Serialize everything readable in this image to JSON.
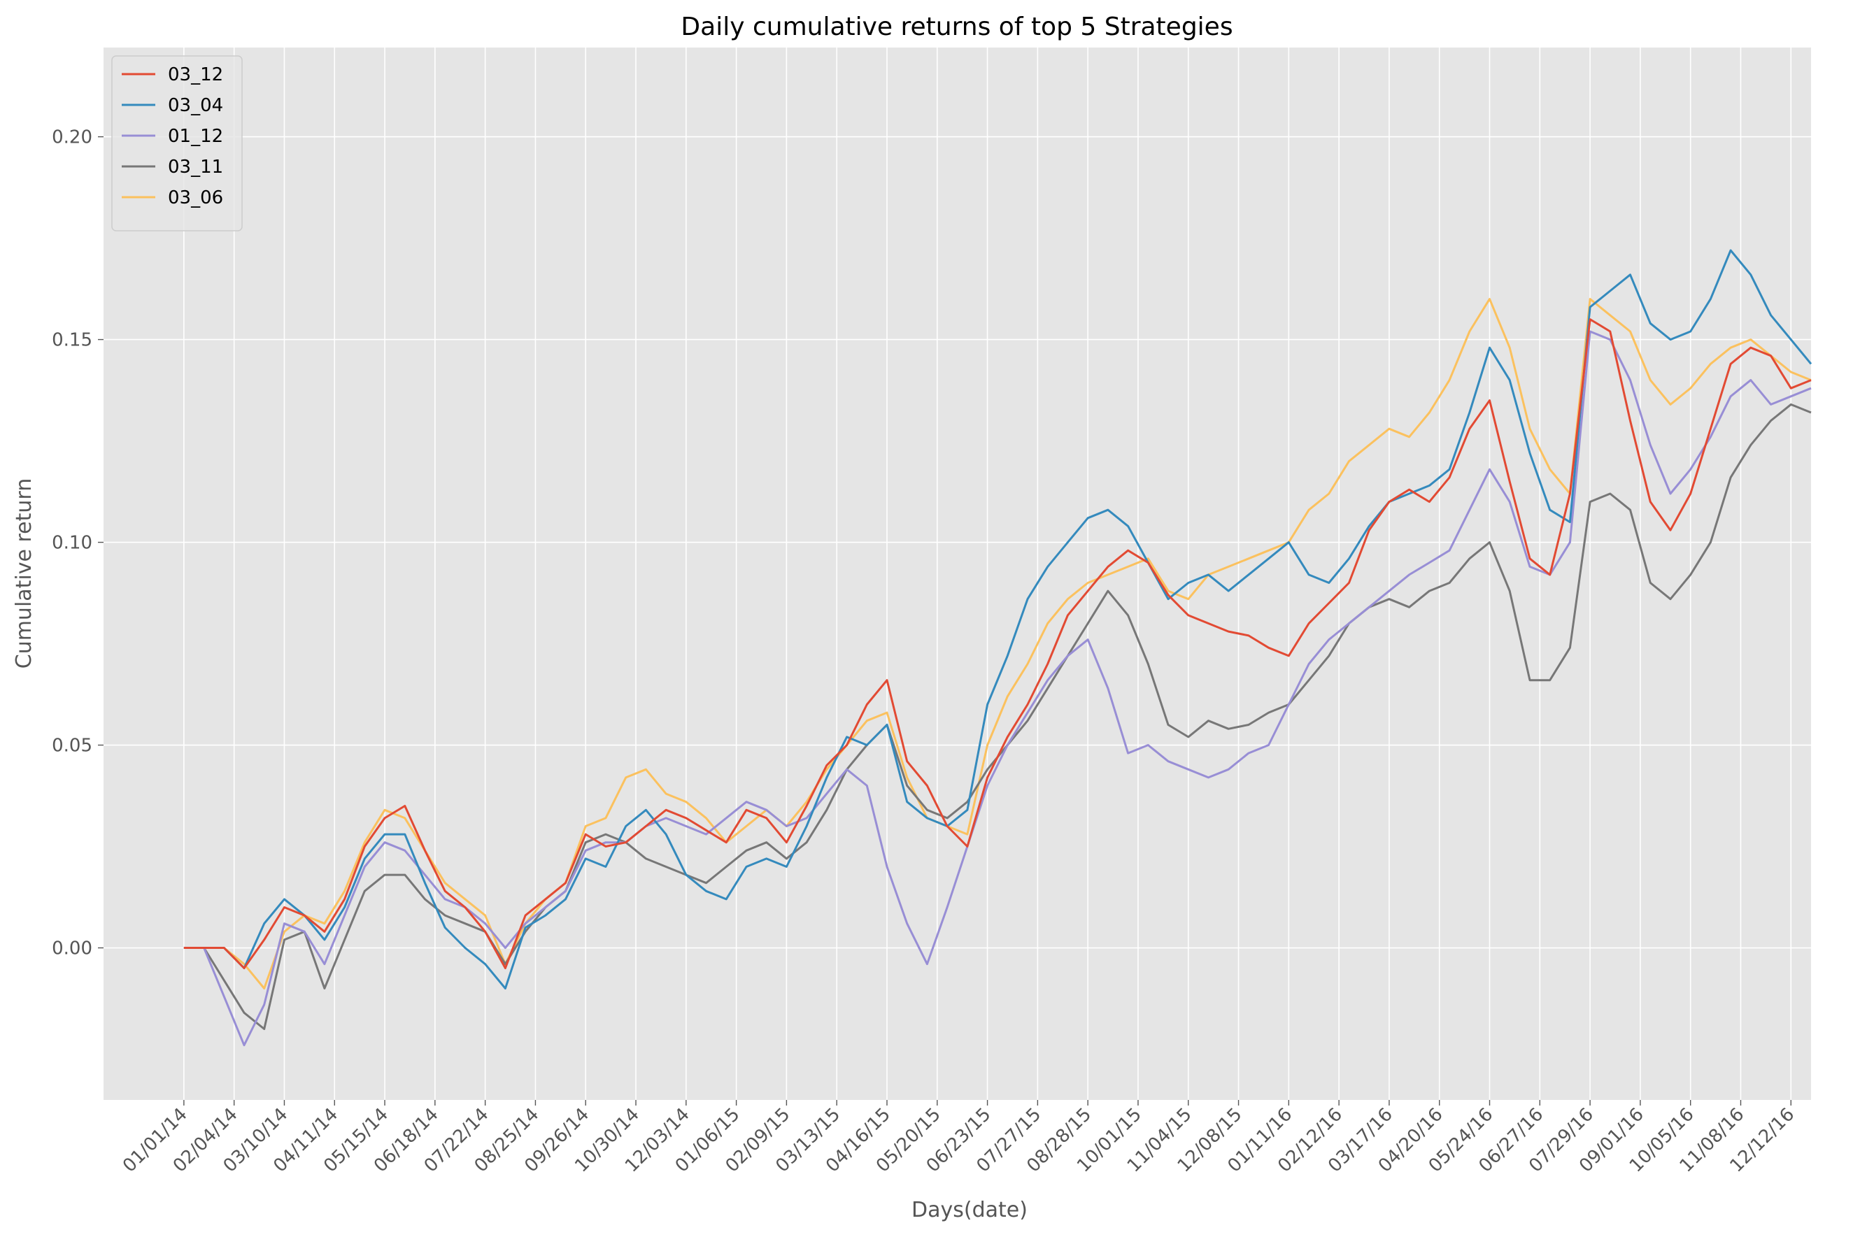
{
  "chart_data": {
    "type": "line",
    "title": "Daily cumulative returns of top 5 Strategies",
    "xlabel": "Days(date)",
    "ylabel": "Cumulative return",
    "ylim": [
      -0.0375,
      0.222
    ],
    "yticks": [
      0.0,
      0.05,
      0.1,
      0.15,
      0.2
    ],
    "ytick_labels": [
      "0.00",
      "0.05",
      "0.10",
      "0.15",
      "0.20"
    ],
    "xlim": [
      -4,
      81
    ],
    "xtick_labels": [
      "01/01/14",
      "02/04/14",
      "03/10/14",
      "04/11/14",
      "05/15/14",
      "06/18/14",
      "07/22/14",
      "08/25/14",
      "09/26/14",
      "10/30/14",
      "12/03/14",
      "01/06/15",
      "02/09/15",
      "03/13/15",
      "04/16/15",
      "05/20/15",
      "06/23/15",
      "07/27/15",
      "08/28/15",
      "10/01/15",
      "11/04/15",
      "12/08/15",
      "01/11/16",
      "02/12/16",
      "03/17/16",
      "04/20/16",
      "05/24/16",
      "06/27/16",
      "07/29/16",
      "09/01/16",
      "10/05/16",
      "11/08/16",
      "12/12/16"
    ],
    "grid": true,
    "legend_position": "top-left",
    "x": [
      0,
      1,
      2,
      3,
      4,
      5,
      6,
      7,
      8,
      9,
      10,
      11,
      12,
      13,
      14,
      15,
      16,
      17,
      18,
      19,
      20,
      21,
      22,
      23,
      24,
      25,
      26,
      27,
      28,
      29,
      30,
      31,
      32,
      33,
      34,
      35,
      36,
      37,
      38,
      39,
      40,
      41,
      42,
      43,
      44,
      45,
      46,
      47,
      48,
      49,
      50,
      51,
      52,
      53,
      54,
      55,
      56,
      57,
      58,
      59,
      60,
      61,
      62,
      63,
      64,
      65,
      66,
      67,
      68,
      69,
      70,
      71,
      72,
      73,
      74,
      75,
      76,
      77,
      78,
      79,
      80,
      81
    ],
    "series": [
      {
        "name": "03_12",
        "color": "#E24A33",
        "values": [
          0.0,
          0.0,
          0.0,
          -0.005,
          0.002,
          0.01,
          0.008,
          0.004,
          0.012,
          0.025,
          0.032,
          0.035,
          0.024,
          0.014,
          0.01,
          0.004,
          -0.005,
          0.008,
          0.012,
          0.016,
          0.028,
          0.025,
          0.026,
          0.03,
          0.034,
          0.032,
          0.029,
          0.026,
          0.034,
          0.032,
          0.026,
          0.035,
          0.045,
          0.05,
          0.06,
          0.066,
          0.046,
          0.04,
          0.03,
          0.025,
          0.042,
          0.052,
          0.06,
          0.07,
          0.082,
          0.088,
          0.094,
          0.098,
          0.095,
          0.087,
          0.082,
          0.08,
          0.078,
          0.077,
          0.074,
          0.072,
          0.08,
          0.085,
          0.09,
          0.103,
          0.11,
          0.113,
          0.11,
          0.116,
          0.128,
          0.135,
          0.115,
          0.096,
          0.092,
          0.112,
          0.155,
          0.152,
          0.13,
          0.11,
          0.103,
          0.112,
          0.128,
          0.144,
          0.148,
          0.146,
          0.138,
          0.14
        ]
      },
      {
        "name": "03_04",
        "color": "#348ABD",
        "values": [
          0.0,
          0.0,
          0.0,
          -0.005,
          0.006,
          0.012,
          0.008,
          0.002,
          0.01,
          0.022,
          0.028,
          0.028,
          0.016,
          0.005,
          0.0,
          -0.004,
          -0.01,
          0.005,
          0.008,
          0.012,
          0.022,
          0.02,
          0.03,
          0.034,
          0.028,
          0.018,
          0.014,
          0.012,
          0.02,
          0.022,
          0.02,
          0.03,
          0.042,
          0.052,
          0.05,
          0.055,
          0.036,
          0.032,
          0.03,
          0.034,
          0.06,
          0.072,
          0.086,
          0.094,
          0.1,
          0.106,
          0.108,
          0.104,
          0.095,
          0.086,
          0.09,
          0.092,
          0.088,
          0.092,
          0.096,
          0.1,
          0.092,
          0.09,
          0.096,
          0.104,
          0.11,
          0.112,
          0.114,
          0.118,
          0.132,
          0.148,
          0.14,
          0.122,
          0.108,
          0.105,
          0.158,
          0.162,
          0.166,
          0.154,
          0.15,
          0.152,
          0.16,
          0.172,
          0.166,
          0.156,
          0.15,
          0.144
        ]
      },
      {
        "name": "01_12",
        "color": "#988ED5",
        "values": [
          0.0,
          0.0,
          -0.012,
          -0.024,
          -0.014,
          0.006,
          0.004,
          -0.004,
          0.008,
          0.02,
          0.026,
          0.024,
          0.018,
          0.012,
          0.01,
          0.006,
          0.0,
          0.006,
          0.01,
          0.014,
          0.024,
          0.026,
          0.026,
          0.03,
          0.032,
          0.03,
          0.028,
          0.032,
          0.036,
          0.034,
          0.03,
          0.032,
          0.038,
          0.044,
          0.04,
          0.02,
          0.006,
          -0.004,
          0.01,
          0.025,
          0.04,
          0.05,
          0.058,
          0.066,
          0.072,
          0.076,
          0.064,
          0.048,
          0.05,
          0.046,
          0.044,
          0.042,
          0.044,
          0.048,
          0.05,
          0.06,
          0.07,
          0.076,
          0.08,
          0.084,
          0.088,
          0.092,
          0.095,
          0.098,
          0.108,
          0.118,
          0.11,
          0.094,
          0.092,
          0.1,
          0.152,
          0.15,
          0.14,
          0.124,
          0.112,
          0.118,
          0.126,
          0.136,
          0.14,
          0.134,
          0.136,
          0.138
        ]
      },
      {
        "name": "03_11",
        "color": "#777777",
        "values": [
          0.0,
          0.0,
          -0.008,
          -0.016,
          -0.02,
          0.002,
          0.004,
          -0.01,
          0.002,
          0.014,
          0.018,
          0.018,
          0.012,
          0.008,
          0.006,
          0.004,
          -0.004,
          0.004,
          0.01,
          0.014,
          0.026,
          0.028,
          0.026,
          0.022,
          0.02,
          0.018,
          0.016,
          0.02,
          0.024,
          0.026,
          0.022,
          0.026,
          0.034,
          0.044,
          0.05,
          0.055,
          0.04,
          0.034,
          0.032,
          0.036,
          0.044,
          0.05,
          0.056,
          0.064,
          0.072,
          0.08,
          0.088,
          0.082,
          0.07,
          0.055,
          0.052,
          0.056,
          0.054,
          0.055,
          0.058,
          0.06,
          0.066,
          0.072,
          0.08,
          0.084,
          0.086,
          0.084,
          0.088,
          0.09,
          0.096,
          0.1,
          0.088,
          0.066,
          0.066,
          0.074,
          0.11,
          0.112,
          0.108,
          0.09,
          0.086,
          0.092,
          0.1,
          0.116,
          0.124,
          0.13,
          0.134,
          0.132
        ]
      },
      {
        "name": "03_06",
        "color": "#FBC15E",
        "values": [
          0.0,
          0.0,
          0.0,
          -0.004,
          -0.01,
          0.004,
          0.008,
          0.006,
          0.014,
          0.026,
          0.034,
          0.032,
          0.024,
          0.016,
          0.012,
          0.008,
          -0.004,
          0.006,
          0.012,
          0.016,
          0.03,
          0.032,
          0.042,
          0.044,
          0.038,
          0.036,
          0.032,
          0.026,
          0.03,
          0.034,
          0.03,
          0.036,
          0.044,
          0.05,
          0.056,
          0.058,
          0.042,
          0.032,
          0.03,
          0.028,
          0.05,
          0.062,
          0.07,
          0.08,
          0.086,
          0.09,
          0.092,
          0.094,
          0.096,
          0.088,
          0.086,
          0.092,
          0.094,
          0.096,
          0.098,
          0.1,
          0.108,
          0.112,
          0.12,
          0.124,
          0.128,
          0.126,
          0.132,
          0.14,
          0.152,
          0.16,
          0.148,
          0.128,
          0.118,
          0.112,
          0.16,
          0.156,
          0.152,
          0.14,
          0.134,
          0.138,
          0.144,
          0.148,
          0.15,
          0.146,
          0.142,
          0.14
        ]
      }
    ]
  }
}
